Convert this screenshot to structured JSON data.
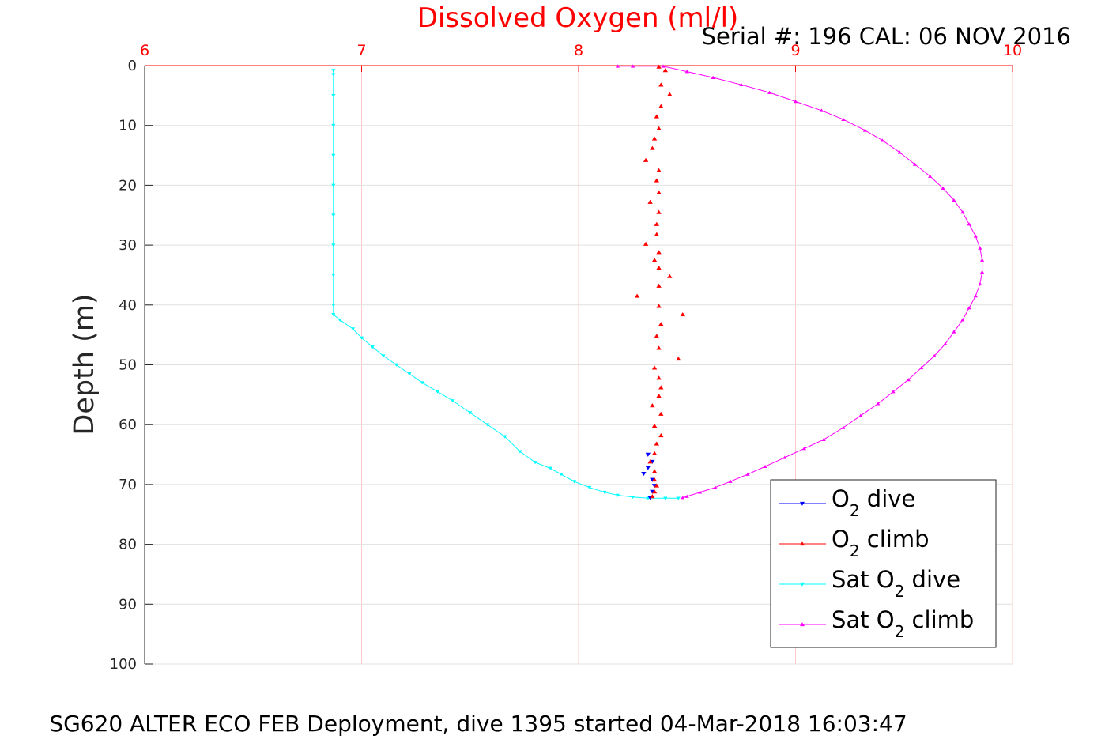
{
  "chart_data": {
    "type": "line",
    "title": "Dissolved Oxygen (ml/l)",
    "subtitle": "Serial #: 196  CAL: 06 NOV 2016",
    "caption": "SG620 ALTER ECO FEB Deployment, dive 1395 started 04-Mar-2018 16:03:47",
    "xlabel": "",
    "ylabel": "Depth (m)",
    "xlim": [
      6,
      10
    ],
    "ylim": [
      0,
      100
    ],
    "y_reversed": true,
    "x_axis_position": "top",
    "x_ticks": [
      "6",
      "7",
      "8",
      "9",
      "10"
    ],
    "y_ticks": [
      "0",
      "10",
      "20",
      "30",
      "40",
      "50",
      "60",
      "70",
      "80",
      "90",
      "100"
    ],
    "grid": true,
    "legend_position": "bottom-right",
    "colors": {
      "title": "#ff0000",
      "x_ticks": "#ff0000",
      "o2_dive": "#0000ff",
      "o2_climb": "#ff0000",
      "sat_dive": "#00ffff",
      "sat_climb": "#ff00ff",
      "grid": "#e0e0e0",
      "x_grid": "#ffc8c8"
    },
    "series": [
      {
        "name": "O2 dive",
        "legend_prefix": "O",
        "legend_sub": "2",
        "legend_suffix": " dive",
        "color": "#0000ff",
        "marker": "triangle-down",
        "line": false,
        "points": [
          [
            8.32,
            65
          ],
          [
            8.34,
            66.2
          ],
          [
            8.32,
            67.2
          ],
          [
            8.3,
            68.2
          ],
          [
            8.34,
            69.2
          ],
          [
            8.35,
            70.2
          ],
          [
            8.34,
            71.2
          ],
          [
            8.33,
            72.2
          ]
        ]
      },
      {
        "name": "O2 climb",
        "legend_prefix": "O",
        "legend_sub": "2",
        "legend_suffix": " climb",
        "color": "#ff0000",
        "marker": "triangle-up",
        "line": false,
        "points": [
          [
            8.37,
            0.2
          ],
          [
            8.4,
            0.8
          ],
          [
            8.38,
            3.2
          ],
          [
            8.42,
            4.8
          ],
          [
            8.38,
            6.8
          ],
          [
            8.36,
            8.5
          ],
          [
            8.37,
            10.5
          ],
          [
            8.35,
            12.2
          ],
          [
            8.34,
            13.8
          ],
          [
            8.31,
            15.8
          ],
          [
            8.37,
            17.5
          ],
          [
            8.36,
            19.2
          ],
          [
            8.37,
            21.2
          ],
          [
            8.33,
            22.8
          ],
          [
            8.37,
            24.5
          ],
          [
            8.36,
            26.5
          ],
          [
            8.36,
            28.2
          ],
          [
            8.31,
            29.8
          ],
          [
            8.37,
            31.2
          ],
          [
            8.35,
            32.5
          ],
          [
            8.37,
            33.8
          ],
          [
            8.42,
            35.2
          ],
          [
            8.37,
            36.8
          ],
          [
            8.27,
            38.5
          ],
          [
            8.37,
            40.2
          ],
          [
            8.48,
            41.6
          ],
          [
            8.38,
            43.2
          ],
          [
            8.36,
            45.2
          ],
          [
            8.37,
            47.2
          ],
          [
            8.46,
            49.0
          ],
          [
            8.35,
            50.5
          ],
          [
            8.37,
            52.2
          ],
          [
            8.38,
            53.8
          ],
          [
            8.37,
            55.2
          ],
          [
            8.34,
            56.8
          ],
          [
            8.38,
            58.2
          ],
          [
            8.35,
            60.2
          ],
          [
            8.38,
            61.8
          ],
          [
            8.36,
            63.2
          ],
          [
            8.35,
            64.8
          ],
          [
            8.33,
            66.2
          ],
          [
            8.35,
            67.8
          ],
          [
            8.35,
            69.2
          ],
          [
            8.36,
            70.2
          ],
          [
            8.35,
            71.2
          ],
          [
            8.34,
            72.0
          ]
        ]
      },
      {
        "name": "Sat O2 dive",
        "legend_prefix": "Sat O",
        "legend_sub": "2",
        "legend_suffix": " dive",
        "color": "#00ffff",
        "marker": "triangle-down",
        "line": true,
        "points": [
          [
            6.87,
            0.8
          ],
          [
            6.87,
            1.5
          ],
          [
            6.87,
            5
          ],
          [
            6.87,
            10
          ],
          [
            6.87,
            15
          ],
          [
            6.87,
            20
          ],
          [
            6.87,
            25
          ],
          [
            6.87,
            30
          ],
          [
            6.87,
            35
          ],
          [
            6.87,
            40
          ],
          [
            6.87,
            41.6
          ],
          [
            6.9,
            42.5
          ],
          [
            6.96,
            44
          ],
          [
            7.0,
            45.5
          ],
          [
            7.05,
            47
          ],
          [
            7.1,
            48.5
          ],
          [
            7.16,
            50
          ],
          [
            7.22,
            51.5
          ],
          [
            7.28,
            53
          ],
          [
            7.35,
            54.5
          ],
          [
            7.42,
            56
          ],
          [
            7.5,
            58
          ],
          [
            7.58,
            60
          ],
          [
            7.66,
            62
          ],
          [
            7.73,
            64.5
          ],
          [
            7.8,
            66.3
          ],
          [
            7.87,
            67.3
          ],
          [
            7.92,
            68.3
          ],
          [
            7.98,
            69.5
          ],
          [
            8.05,
            70.5
          ],
          [
            8.12,
            71.3
          ],
          [
            8.18,
            71.8
          ],
          [
            8.25,
            72.1
          ],
          [
            8.32,
            72.3
          ],
          [
            8.4,
            72.3
          ],
          [
            8.46,
            72.3
          ]
        ]
      },
      {
        "name": "Sat O2 climb",
        "legend_prefix": "Sat O",
        "legend_sub": "2",
        "legend_suffix": " climb",
        "color": "#ff00ff",
        "marker": "triangle-up",
        "line": true,
        "points": [
          [
            8.18,
            0.1
          ],
          [
            8.25,
            0.1
          ],
          [
            8.39,
            0.1
          ],
          [
            8.5,
            1.0
          ],
          [
            8.62,
            2.0
          ],
          [
            8.75,
            3.2
          ],
          [
            8.88,
            4.5
          ],
          [
            9.0,
            6.0
          ],
          [
            9.12,
            7.5
          ],
          [
            9.22,
            9.0
          ],
          [
            9.32,
            10.8
          ],
          [
            9.4,
            12.5
          ],
          [
            9.48,
            14.5
          ],
          [
            9.55,
            16.5
          ],
          [
            9.62,
            18.5
          ],
          [
            9.68,
            20.5
          ],
          [
            9.73,
            22.5
          ],
          [
            9.77,
            24.5
          ],
          [
            9.8,
            26.5
          ],
          [
            9.83,
            28.5
          ],
          [
            9.85,
            30.5
          ],
          [
            9.86,
            32.5
          ],
          [
            9.86,
            34.5
          ],
          [
            9.85,
            36.5
          ],
          [
            9.83,
            38.5
          ],
          [
            9.8,
            40.5
          ],
          [
            9.77,
            42.5
          ],
          [
            9.73,
            44.5
          ],
          [
            9.69,
            46.5
          ],
          [
            9.64,
            48.5
          ],
          [
            9.58,
            50.5
          ],
          [
            9.52,
            52.5
          ],
          [
            9.45,
            54.5
          ],
          [
            9.38,
            56.5
          ],
          [
            9.3,
            58.5
          ],
          [
            9.22,
            60.5
          ],
          [
            9.13,
            62.5
          ],
          [
            9.04,
            64.0
          ],
          [
            8.95,
            65.5
          ],
          [
            8.86,
            67.0
          ],
          [
            8.78,
            68.3
          ],
          [
            8.7,
            69.5
          ],
          [
            8.63,
            70.5
          ],
          [
            8.56,
            71.3
          ],
          [
            8.5,
            72.0
          ],
          [
            8.48,
            72.2
          ]
        ]
      }
    ]
  }
}
